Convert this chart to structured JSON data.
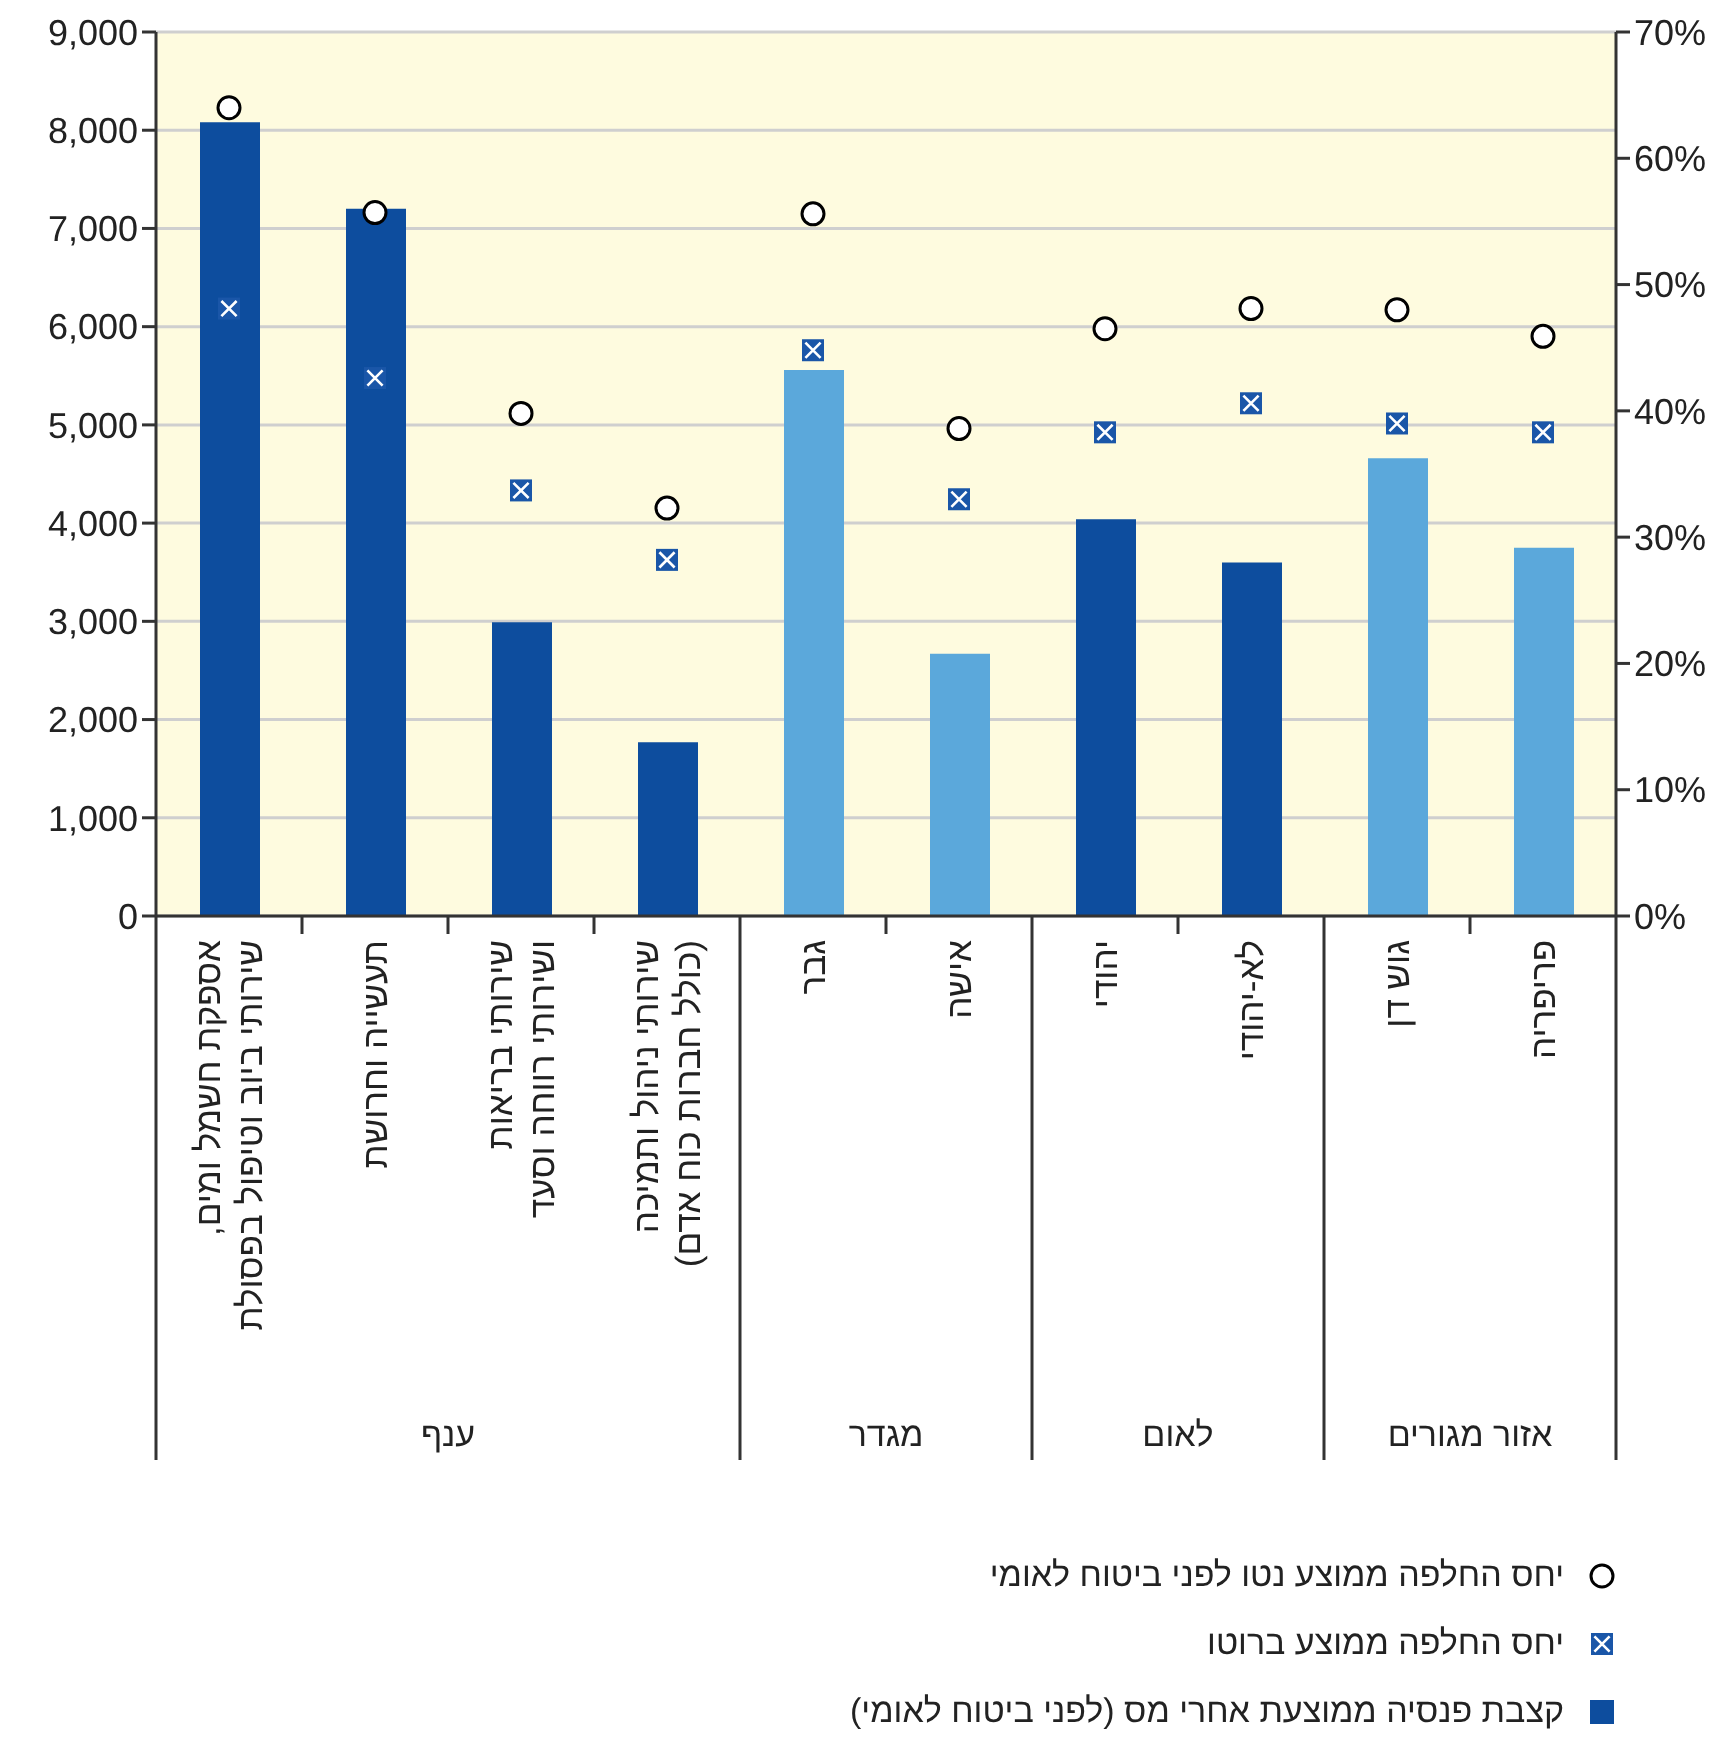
{
  "chart_data": {
    "type": "bar",
    "categories": [
      "אספקת חשמל ומים,\nשירותי ביוב וטיפול בפסולת",
      "תעשייה וחרושת",
      "שירותי בריאות\nושירותי רווחה וסעד",
      "שירותי ניהול ותמיכה\n(כולל חברות כוח אדם)",
      "גבר",
      "אישה",
      "יהודי",
      "לא-יהודי",
      "גוש דן",
      "פריפריה"
    ],
    "series": [
      {
        "name": "יחס החלפה ממוצע נטו לפני ביטוח לאומי",
        "type": "scatter",
        "axis": "y2",
        "marker": "circle",
        "color": "#000000",
        "values": [
          64,
          55.7,
          39.8,
          32.3,
          55.6,
          38.6,
          46.5,
          48.1,
          48,
          45.9
        ]
      },
      {
        "name": "יחס החלפה ממוצע ברוטו",
        "type": "scatter",
        "axis": "y2",
        "marker": "square",
        "color": "#1a56a8",
        "values": [
          48.1,
          42.6,
          33.7,
          28.2,
          44.8,
          33,
          38.3,
          40.6,
          39,
          38.3
        ]
      },
      {
        "name": "קצבת פנסיה ממוצעת אחרי מס (לפני ביטוח לאומי)",
        "color": "#0d4d9e",
        "colors": [
          "#0d4d9e",
          "#0d4d9e",
          "#0d4d9e",
          "#0d4d9e",
          "#5ba8db",
          "#5ba8db",
          "#0d4d9e",
          "#0d4d9e",
          "#5ba8db",
          "#5ba8db"
        ],
        "values": [
          8080,
          7200,
          2990,
          1770,
          5560,
          2670,
          4040,
          3600,
          4660,
          3750
        ]
      }
    ],
    "ylim": [
      0,
      9000
    ],
    "yticks": [
      0,
      {
        "value": 1000,
        "label": "1,000"
      },
      {
        "value": 2000,
        "label": "2,000"
      },
      {
        "value": 3000,
        "label": "3,000"
      },
      {
        "value": 4000,
        "label": "4,000"
      },
      {
        "value": 5000,
        "label": "5,000"
      },
      {
        "value": 6000,
        "label": "6,000"
      },
      {
        "value": 7000,
        "label": "7,000"
      },
      {
        "value": 8000,
        "label": "8,000"
      },
      {
        "value": 9000,
        "label": "9,000"
      }
    ],
    "y2lim": [
      0,
      70
    ],
    "y2ticks": [
      {
        "value": 0,
        "label": "0%"
      },
      {
        "value": 10,
        "label": "10%"
      },
      {
        "value": 20,
        "label": "20%"
      },
      {
        "value": 30,
        "label": "30%"
      },
      {
        "value": 40,
        "label": "40%"
      },
      {
        "value": 50,
        "label": "50%"
      },
      {
        "value": 60,
        "label": "60%"
      },
      {
        "value": 70,
        "label": "70%"
      }
    ],
    "grid": "y",
    "legend": "bottom right",
    "annotations": [
      "ענף",
      "מגדר",
      "לאום",
      "אזור מגורים"
    ]
  }
}
